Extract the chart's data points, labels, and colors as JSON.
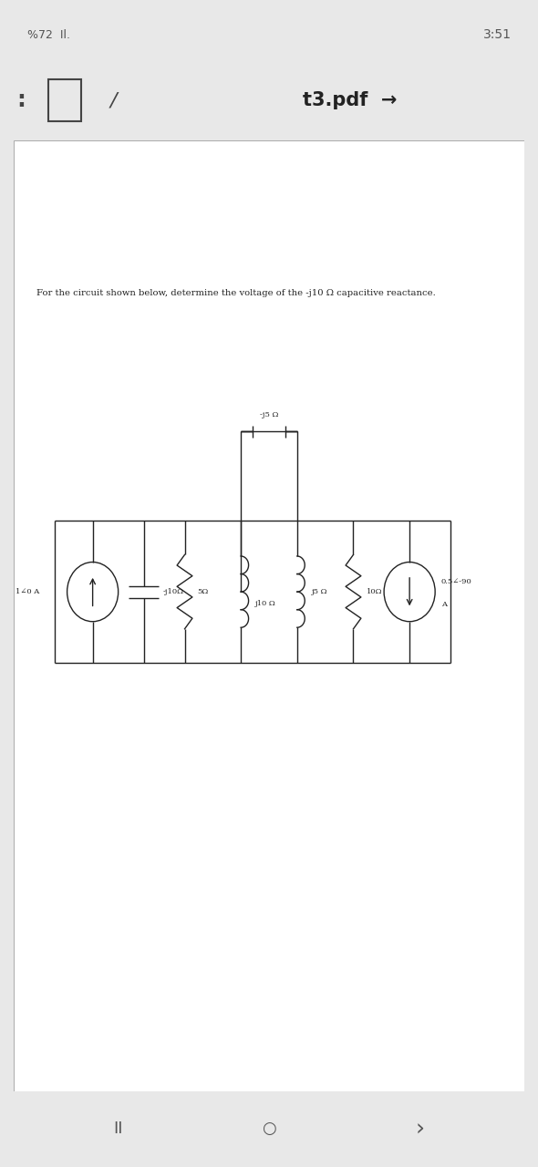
{
  "bg_color": "#e8e8e8",
  "page_bg": "#ffffff",
  "status_left": "%72  Il.",
  "status_right": "3:51",
  "nav_title": "t3.pdf",
  "question_text": "For the circuit shown below, determine the voltage of the -j10 Ω capacitive reactance.",
  "cap_above_label": "-j5 Ω",
  "cs1_label": "1∠0 A",
  "cap1_label": "-j10Ω",
  "r1_label": "5Ω",
  "ind_label": "j10 Ω",
  "j5_label": "j5 Ω",
  "r2_label": "10Ω",
  "cs2_label1": "0.5∠-90",
  "cs2_label2": "A",
  "wire_color": "#222222",
  "text_color": "#222222"
}
